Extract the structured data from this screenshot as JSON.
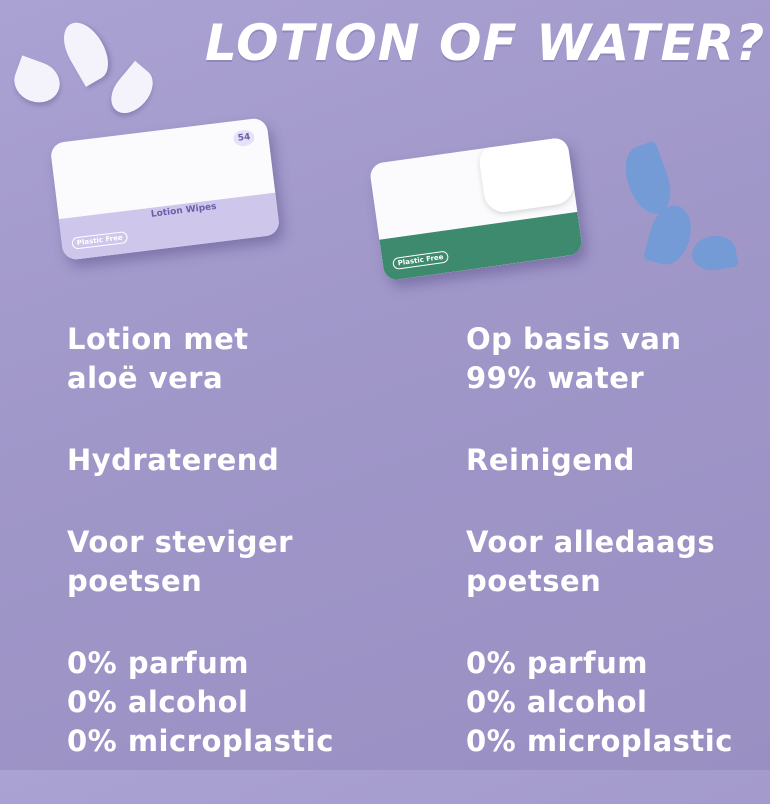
{
  "title": "LOTION OF WATER?",
  "products": {
    "left": {
      "name": "Lotion Wipes",
      "count": "54",
      "badge": "Plastic Free",
      "band_color": "#cfc6ec"
    },
    "right": {
      "badge": "Plastic Free",
      "band_color": "#3e8a6f"
    }
  },
  "left_column": {
    "base": [
      "Lotion met",
      "aloë vera"
    ],
    "effect": "Hydraterend",
    "use": [
      "Voor steviger",
      "poetsen"
    ],
    "free_of": [
      "0% parfum",
      "0% alcohol",
      "0% microplastic"
    ]
  },
  "right_column": {
    "base": [
      "Op basis van",
      "99% water"
    ],
    "effect": "Reinigend",
    "use": [
      "Voor alledaags",
      "poetsen"
    ],
    "free_of": [
      "0% parfum",
      "0% alcohol",
      "0% microplastic"
    ]
  },
  "colors": {
    "background": "#a49ac8",
    "text": "#ffffff",
    "drop_blue": "#6f9bd6"
  }
}
